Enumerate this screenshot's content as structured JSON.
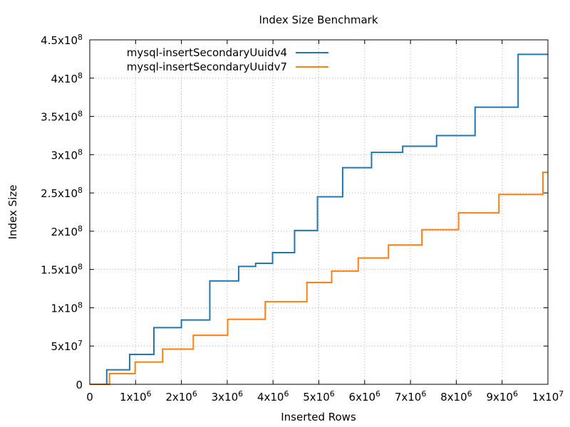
{
  "chart_data": {
    "type": "line",
    "title": "Index Size Benchmark",
    "xlabel": "Inserted Rows",
    "ylabel": "Index Size",
    "xlim": [
      0,
      10000000
    ],
    "ylim": [
      0,
      450000000
    ],
    "grid": true,
    "legend_position": "top-left",
    "x_ticks": [
      {
        "value": 0,
        "mant": "0",
        "exp": ""
      },
      {
        "value": 1000000,
        "mant": "1x10",
        "exp": "6"
      },
      {
        "value": 2000000,
        "mant": "2x10",
        "exp": "6"
      },
      {
        "value": 3000000,
        "mant": "3x10",
        "exp": "6"
      },
      {
        "value": 4000000,
        "mant": "4x10",
        "exp": "6"
      },
      {
        "value": 5000000,
        "mant": "5x10",
        "exp": "6"
      },
      {
        "value": 6000000,
        "mant": "6x10",
        "exp": "6"
      },
      {
        "value": 7000000,
        "mant": "7x10",
        "exp": "6"
      },
      {
        "value": 8000000,
        "mant": "8x10",
        "exp": "6"
      },
      {
        "value": 9000000,
        "mant": "9x10",
        "exp": "6"
      },
      {
        "value": 10000000,
        "mant": "1x10",
        "exp": "7"
      }
    ],
    "y_ticks": [
      {
        "value": 0,
        "mant": "0",
        "exp": ""
      },
      {
        "value": 50000000,
        "mant": "5x10",
        "exp": "7"
      },
      {
        "value": 100000000,
        "mant": "1x10",
        "exp": "8"
      },
      {
        "value": 150000000,
        "mant": "1.5x10",
        "exp": "8"
      },
      {
        "value": 200000000,
        "mant": "2x10",
        "exp": "8"
      },
      {
        "value": 250000000,
        "mant": "2.5x10",
        "exp": "8"
      },
      {
        "value": 300000000,
        "mant": "3x10",
        "exp": "8"
      },
      {
        "value": 350000000,
        "mant": "3.5x10",
        "exp": "8"
      },
      {
        "value": 400000000,
        "mant": "4x10",
        "exp": "8"
      },
      {
        "value": 450000000,
        "mant": "4.5x10",
        "exp": "8"
      }
    ],
    "series": [
      {
        "name": "mysql-insertSecondaryUuidv4",
        "color": "#1f77b4",
        "x": [
          0,
          370000,
          870000,
          1400000,
          2000000,
          2620000,
          3250000,
          3620000,
          3990000,
          4470000,
          4970000,
          5520000,
          6150000,
          6830000,
          7570000,
          8410000,
          9350000,
          10000000
        ],
        "y": [
          0,
          19000000,
          39000000,
          74000000,
          84000000,
          135000000,
          154000000,
          158000000,
          172000000,
          201000000,
          245000000,
          283000000,
          303000000,
          311000000,
          325000000,
          362000000,
          431000000,
          431000000
        ]
      },
      {
        "name": "mysql-insertSecondaryUuidv7",
        "color": "#ff7f0e",
        "x": [
          0,
          430000,
          990000,
          1590000,
          2260000,
          3010000,
          3830000,
          4740000,
          5280000,
          5860000,
          6520000,
          7250000,
          8050000,
          8930000,
          9890000,
          10000000
        ],
        "y": [
          0,
          14000000,
          29000000,
          46000000,
          64000000,
          85000000,
          108000000,
          133000000,
          148000000,
          165000000,
          182000000,
          202000000,
          224000000,
          248000000,
          277000000,
          277000000
        ]
      }
    ]
  }
}
